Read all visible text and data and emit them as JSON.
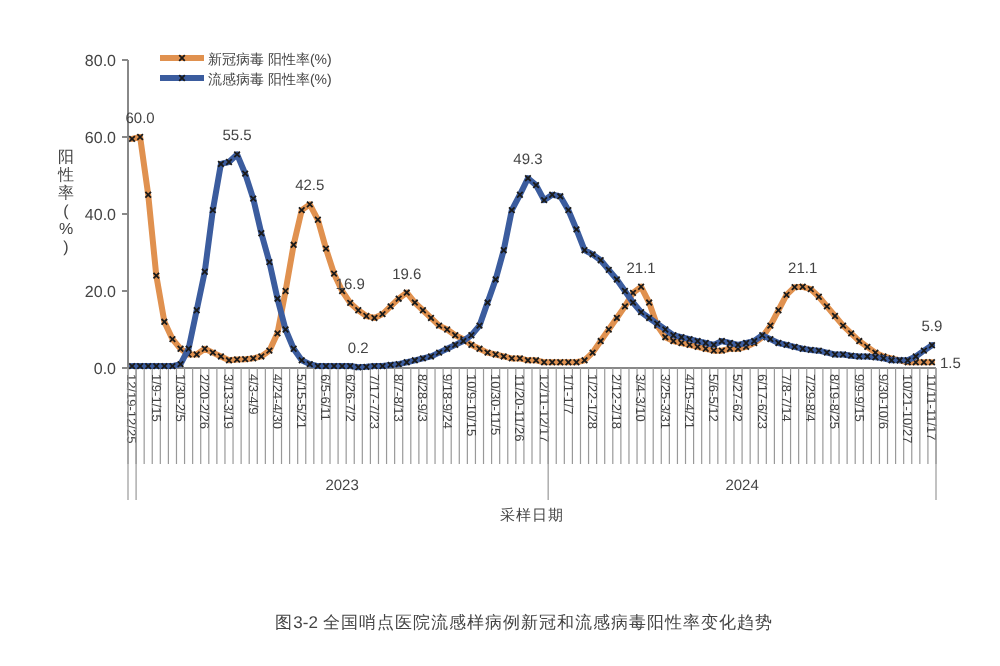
{
  "chart_data": {
    "type": "line",
    "xlabel": "采样日期",
    "ylabel": "阳性率(%)",
    "categories": [
      "12/19-12/25",
      null,
      null,
      "1/9-1/15",
      null,
      null,
      "1/30-2/5",
      null,
      null,
      "2/20-2/26",
      null,
      null,
      "3/13-3/19",
      null,
      null,
      "4/3-4/9",
      null,
      null,
      "4/24-4/30",
      null,
      null,
      "5/15-5/21",
      null,
      null,
      "6/5-6/11",
      null,
      null,
      "6/26-7/2",
      null,
      null,
      "7/17-7/23",
      null,
      null,
      "8/7-8/13",
      null,
      null,
      "8/28-9/3",
      null,
      null,
      "9/18-9/24",
      null,
      null,
      "10/9-10/15",
      null,
      null,
      "10/30-11/5",
      null,
      null,
      "11/20-11/26",
      null,
      null,
      "12/11-12/17",
      null,
      null,
      "1/1-1/7",
      null,
      null,
      "1/22-1/28",
      null,
      null,
      "2/12-2/18",
      null,
      null,
      "3/4-3/10",
      null,
      null,
      "3/25-3/31",
      null,
      null,
      "4/15-4/21",
      null,
      null,
      "5/6-5/12",
      null,
      null,
      "5/27-6/2",
      null,
      null,
      "6/17-6/23",
      null,
      null,
      "7/8-7/14",
      null,
      null,
      "7/29-8/4",
      null,
      null,
      "8/19-8/25",
      null,
      null,
      "9/9-9/15",
      null,
      null,
      "9/30-10/6",
      null,
      null,
      "10/21-10/27",
      null,
      null,
      "11/11-11/17"
    ],
    "ylim": [
      0,
      80
    ],
    "yticks": [
      {
        "value": 0,
        "label": "0.0"
      },
      {
        "value": 20,
        "label": "20.0"
      },
      {
        "value": 40,
        "label": "40.0"
      },
      {
        "value": 60,
        "label": "60.0"
      },
      {
        "value": 80,
        "label": "80.0"
      }
    ],
    "marker": "cross",
    "legend": "top left",
    "grid": false,
    "series": [
      {
        "name": "新冠病毒 阳性率(%)",
        "color": "#e0914f",
        "values": [
          59.5,
          60.0,
          45,
          24,
          12,
          7.5,
          5,
          3.5,
          3.5,
          5,
          4,
          3,
          2,
          2.2,
          2.3,
          2.5,
          3,
          4.5,
          9,
          20,
          32,
          41,
          42.5,
          38.5,
          31,
          24.5,
          20,
          16.9,
          15,
          13.5,
          13,
          14,
          16,
          18,
          19.6,
          17,
          15,
          13,
          11,
          10,
          8.5,
          7.5,
          6,
          5,
          4,
          3.5,
          3,
          2.5,
          2.5,
          2,
          2,
          1.5,
          1.5,
          1.5,
          1.5,
          1.5,
          2,
          4,
          7,
          10,
          13,
          16,
          19.5,
          21.1,
          17,
          11,
          8,
          7,
          6.5,
          6,
          5.5,
          5,
          4.5,
          4.5,
          5,
          5,
          5.5,
          6.5,
          8,
          11,
          15,
          19,
          21,
          21.1,
          20.5,
          18.5,
          16,
          13.5,
          11,
          9,
          7,
          5.5,
          4,
          3,
          2.5,
          2,
          1.5,
          1.5,
          1.5,
          1.5
        ],
        "value_labels": [
          null,
          "60.0",
          null,
          null,
          null,
          null,
          null,
          null,
          null,
          null,
          null,
          null,
          null,
          null,
          null,
          null,
          null,
          null,
          null,
          null,
          null,
          null,
          "42.5",
          null,
          null,
          null,
          null,
          "16.9",
          null,
          null,
          null,
          null,
          null,
          null,
          "19.6",
          null,
          null,
          null,
          null,
          null,
          null,
          null,
          null,
          null,
          null,
          null,
          null,
          null,
          null,
          null,
          null,
          null,
          null,
          null,
          null,
          null,
          null,
          null,
          null,
          null,
          null,
          null,
          null,
          "21.1",
          null,
          null,
          null,
          null,
          null,
          null,
          null,
          null,
          null,
          null,
          null,
          null,
          null,
          null,
          null,
          null,
          null,
          null,
          null,
          "21.1",
          null,
          null,
          null,
          null,
          null,
          null,
          null,
          null,
          null,
          null,
          null,
          null,
          null,
          null,
          null,
          "1.5"
        ]
      },
      {
        "name": "流感病毒 阳性率(%)",
        "color": "#3b5c9e",
        "values": [
          0.5,
          0.5,
          0.5,
          0.5,
          0.5,
          0.5,
          1,
          5,
          15,
          25,
          41,
          53,
          53.5,
          55.5,
          50.5,
          44,
          35,
          27.5,
          18,
          10,
          5,
          2,
          1,
          0.5,
          0.5,
          0.5,
          0.5,
          0.5,
          0.2,
          0.3,
          0.5,
          0.5,
          0.8,
          1,
          1.5,
          2,
          2.5,
          3,
          4,
          5,
          6,
          7,
          8.5,
          11,
          17,
          23,
          30.6,
          41,
          45,
          49.3,
          47.5,
          43.6,
          45,
          44.6,
          41,
          36,
          30.6,
          29.5,
          28,
          25.5,
          23,
          20,
          17,
          14.5,
          13,
          11.5,
          10,
          8.5,
          8,
          7.5,
          7,
          6.5,
          6,
          7,
          6.5,
          6,
          6.5,
          7,
          8.5,
          7.5,
          6.5,
          6,
          5.5,
          5,
          4.7,
          4.5,
          4,
          3.5,
          3.5,
          3.2,
          3,
          3,
          2.8,
          2.5,
          2,
          2,
          2,
          3,
          4.5,
          5.9
        ],
        "value_labels": [
          null,
          null,
          null,
          null,
          null,
          null,
          null,
          null,
          null,
          null,
          null,
          null,
          null,
          "55.5",
          null,
          null,
          null,
          null,
          null,
          null,
          null,
          null,
          null,
          null,
          null,
          null,
          null,
          null,
          "0.2",
          null,
          null,
          null,
          null,
          null,
          null,
          null,
          null,
          null,
          null,
          null,
          null,
          null,
          null,
          null,
          null,
          null,
          null,
          null,
          null,
          "49.3",
          null,
          null,
          null,
          null,
          null,
          null,
          null,
          null,
          null,
          null,
          null,
          null,
          null,
          null,
          null,
          null,
          null,
          null,
          null,
          null,
          null,
          null,
          null,
          null,
          null,
          null,
          null,
          null,
          null,
          null,
          null,
          null,
          null,
          null,
          null,
          null,
          null,
          null,
          null,
          null,
          null,
          null,
          null,
          null,
          null,
          null,
          null,
          null,
          null,
          "5.9"
        ]
      }
    ],
    "annotations": [
      "2023",
      "2024",
      "图3-2  全国哨点医院流感样病例新冠和流感病毒阳性率变化趋势"
    ]
  }
}
